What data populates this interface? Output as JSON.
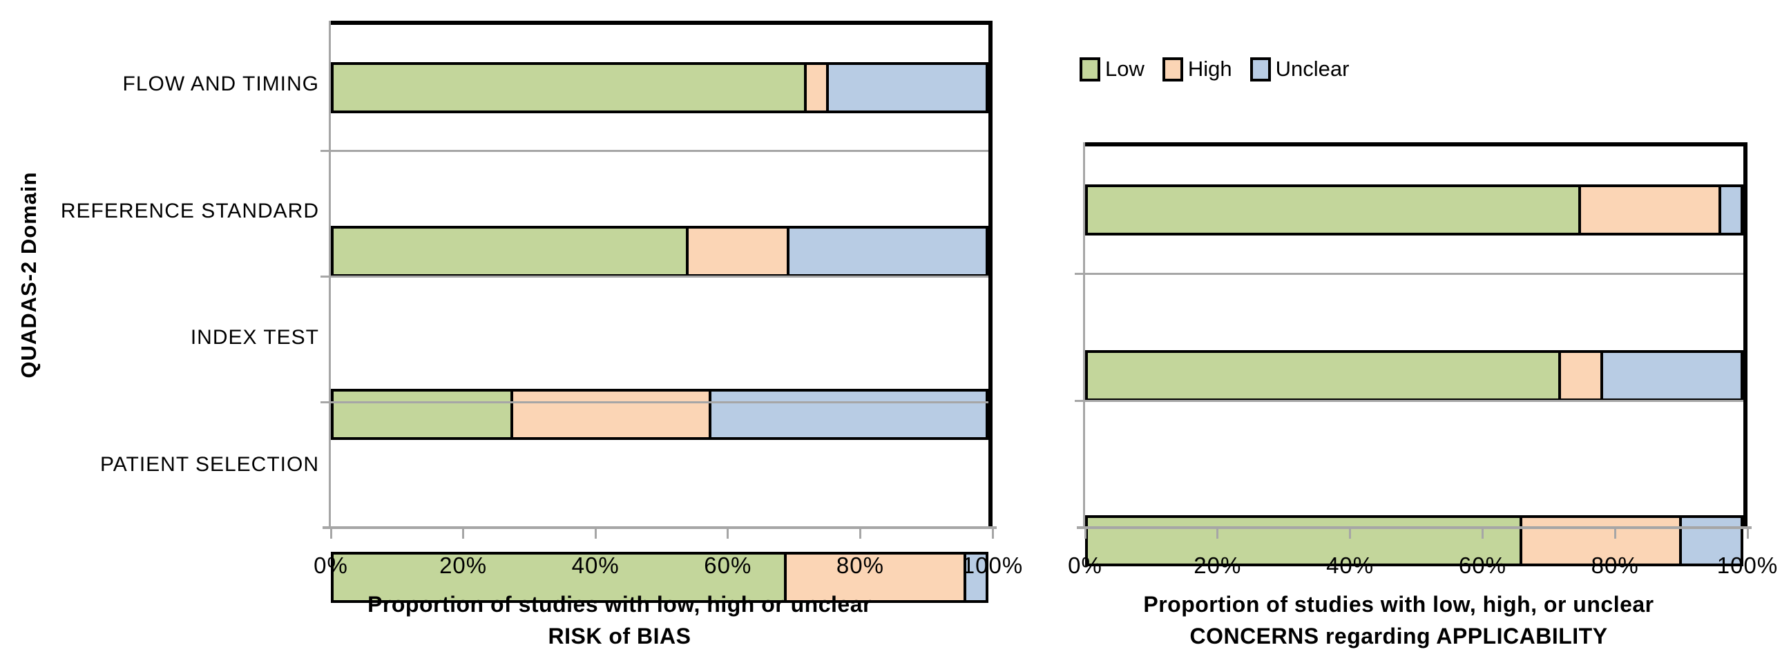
{
  "figure": {
    "y_axis_title": "QUADAS-2 Domain"
  },
  "legend": {
    "position": "top-left-above-applicability-chart",
    "items": [
      {
        "label": "Low",
        "color": "#C3D69B"
      },
      {
        "label": "High",
        "color": "#FBD5B5"
      },
      {
        "label": "Unclear",
        "color": "#B8CCE4"
      }
    ]
  },
  "colors": {
    "bar_border": "#000000",
    "plot_border": "#000000",
    "axis_and_gridline_gray": "#A6A6A6",
    "background": "#FFFFFF"
  },
  "chart_data": [
    {
      "type": "bar",
      "orientation": "horizontal",
      "stacked": true,
      "xlabel_lines": [
        "Proportion of studies with low, high or unclear",
        "RISK of BIAS"
      ],
      "ylabel": "QUADAS-2 Domain",
      "x_ticks": [
        "0%",
        "20%",
        "40%",
        "60%",
        "80%",
        "100%"
      ],
      "xlim": [
        0,
        100
      ],
      "grid": "horizontal-category-separators-only",
      "categories": [
        "FLOW AND TIMING",
        "REFERENCE STANDARD",
        "INDEX TEST",
        "PATIENT SELECTION"
      ],
      "show_category_labels": true,
      "series": [
        {
          "name": "Low",
          "values": [
            72.7,
            54.5,
            27.3,
            69.7
          ]
        },
        {
          "name": "High",
          "values": [
            3.0,
            15.2,
            30.3,
            27.3
          ]
        },
        {
          "name": "Unclear",
          "values": [
            24.2,
            30.3,
            42.4,
            3.0
          ]
        }
      ]
    },
    {
      "type": "bar",
      "orientation": "horizontal",
      "stacked": true,
      "xlabel_lines": [
        "Proportion of studies with low, high, or unclear",
        "CONCERNS regarding APPLICABILITY"
      ],
      "x_ticks": [
        "0%",
        "20%",
        "40%",
        "60%",
        "80%",
        "100%"
      ],
      "xlim": [
        0,
        100
      ],
      "grid": "horizontal-category-separators-only",
      "categories": [
        "REFERENCE STANDARD",
        "INDEX TEST",
        "PATIENT SELECTION"
      ],
      "show_category_labels": false,
      "series": [
        {
          "name": "Low",
          "values": [
            75.8,
            72.7,
            66.7
          ]
        },
        {
          "name": "High",
          "values": [
            21.2,
            6.1,
            24.2
          ]
        },
        {
          "name": "Unclear",
          "values": [
            3.0,
            21.2,
            9.1
          ]
        }
      ]
    }
  ]
}
